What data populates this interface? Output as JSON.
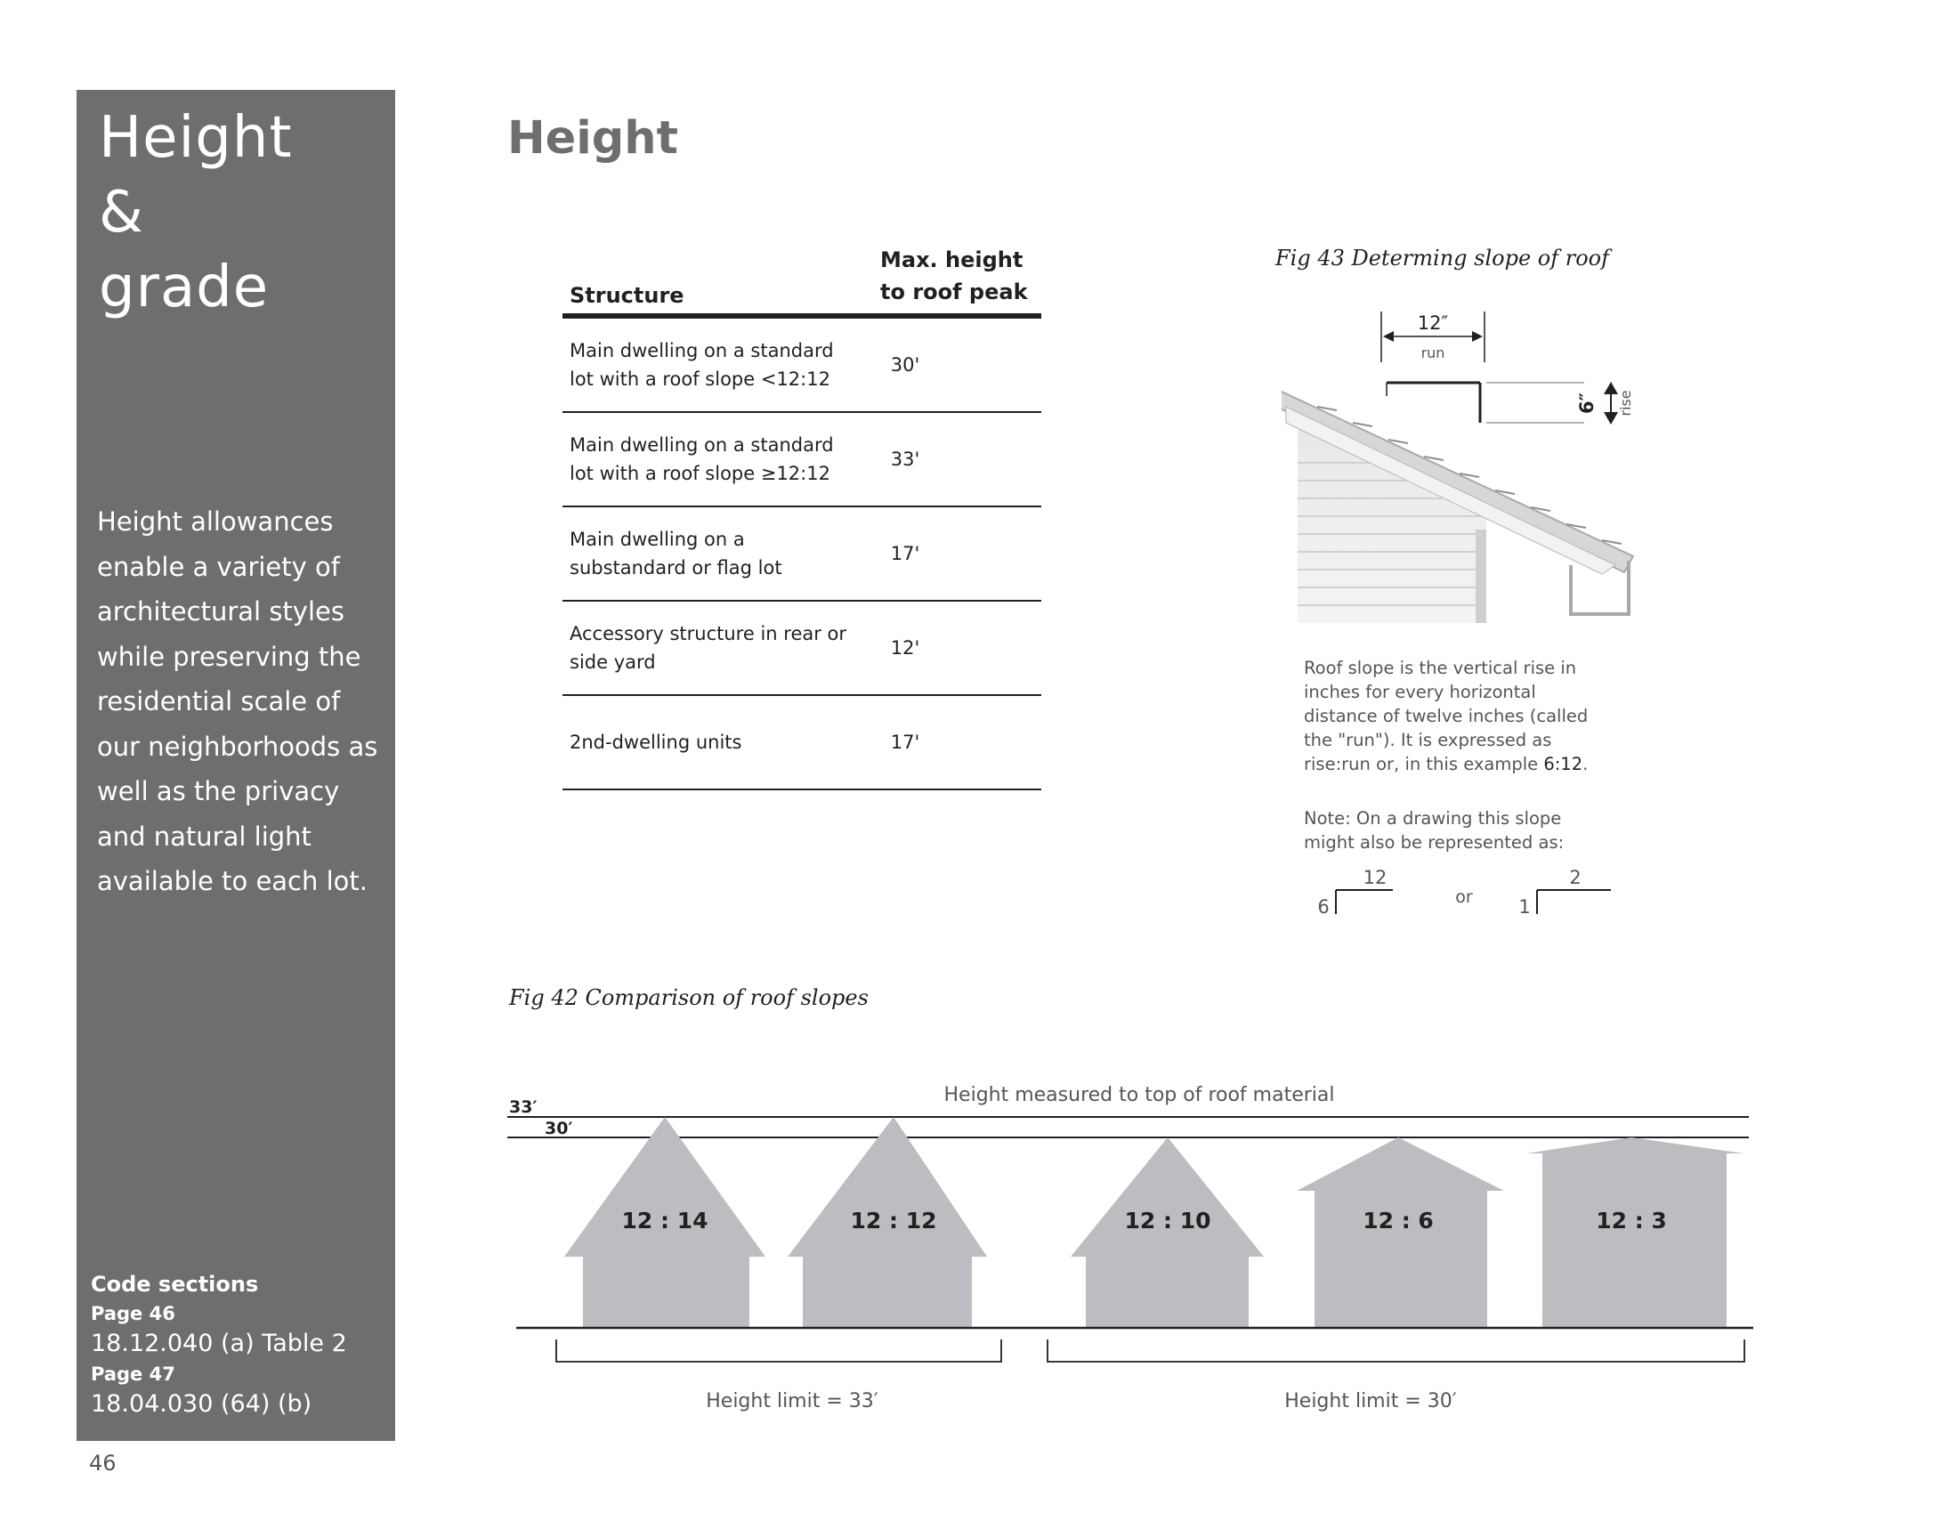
{
  "sidebar": {
    "title_lines": [
      "Height",
      "&",
      "grade"
    ],
    "body": "Height allowances enable a variety of architectural styles while preserving the residential scale of our neighborhoods as well as the privacy and natural light available to each lot.",
    "code_heading": "Code sections",
    "code_sections": [
      {
        "page": "Page 46",
        "ref": "18.12.040 (a) Table 2"
      },
      {
        "page": "Page 47",
        "ref": "18.04.030 (64) (b)"
      }
    ]
  },
  "page_number": "46",
  "main_title": "Height",
  "table": {
    "headers": [
      "Structure",
      "Max. height to roof peak"
    ],
    "header_lines": [
      "Max. height",
      "to roof peak"
    ],
    "rows": [
      {
        "structure": "Main dwelling on a standard lot with a roof slope <12:12",
        "height": "30'"
      },
      {
        "structure": "Main dwelling on a standard lot with a roof slope ≥12:12",
        "height": "33'"
      },
      {
        "structure": "Main dwelling on a substandard or flag lot",
        "height": "17'"
      },
      {
        "structure": "Accessory structure in rear or side yard",
        "height": "12'"
      },
      {
        "structure": "2nd-dwelling units",
        "height": "17'"
      }
    ]
  },
  "fig43": {
    "caption": "Fig 43 Determing slope of roof",
    "run_value": "12″",
    "run_label": "run",
    "rise_value": "6″",
    "rise_label": "rise",
    "description_prefix": "Roof slope is the vertical rise in inches for every horizontal distance of twelve inches (called the \"run\"). It is expressed as rise:run or, in this example ",
    "description_value": "6:12",
    "description_suffix": ".",
    "note": "Note: On a drawing this slope might also be represented as:",
    "symbol_a": {
      "rise": "6",
      "run": "12"
    },
    "symbol_or": "or",
    "symbol_b": {
      "rise": "1",
      "run": "2"
    }
  },
  "fig42": {
    "caption": "Fig 42 Comparison of roof slopes",
    "measure_label": "Height measured to top of roof material",
    "line_labels": [
      "33′",
      "30′"
    ],
    "houses": [
      "12 : 14",
      "12 : 12",
      "12 : 10",
      "12 : 6",
      "12 : 3"
    ],
    "limit_33": "Height limit = 33′",
    "limit_30": "Height limit = 30′"
  },
  "colors": {
    "sidebar": "#6d6e70",
    "house": "#bcbdc0",
    "title": "#6d6e70"
  }
}
